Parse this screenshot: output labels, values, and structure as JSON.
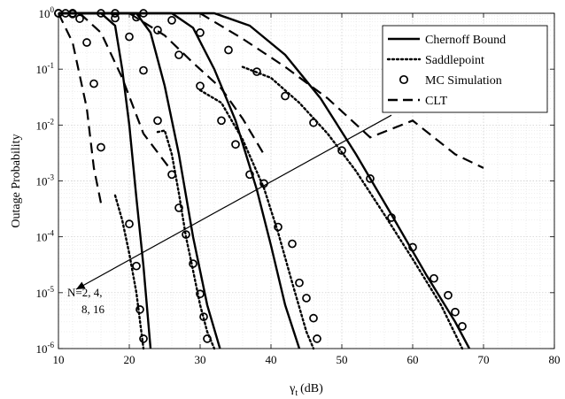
{
  "chart_data": {
    "type": "line",
    "title": "",
    "xlabel": "γ",
    "xlabel_sub": "t",
    "xlabel_unit": "(dB)",
    "ylabel": "Outage Probability",
    "xlim": [
      10,
      80
    ],
    "ylim": [
      1e-06,
      1
    ],
    "yscale": "log",
    "grid": true,
    "legend_position": "top-right",
    "x_ticks": [
      10,
      20,
      30,
      40,
      50,
      60,
      70,
      80
    ],
    "x_tick_labels": [
      "10",
      "20",
      "30",
      "40",
      "50",
      "60",
      "70",
      "80"
    ],
    "y_ticks": [
      1,
      0.1,
      0.01,
      0.001,
      0.0001,
      1e-05,
      1e-06
    ],
    "y_tick_labels": [
      {
        "base": "10",
        "exp": "0"
      },
      {
        "base": "10",
        "exp": "-1"
      },
      {
        "base": "10",
        "exp": "-2"
      },
      {
        "base": "10",
        "exp": "-3"
      },
      {
        "base": "10",
        "exp": "-4"
      },
      {
        "base": "10",
        "exp": "-5"
      },
      {
        "base": "10",
        "exp": "-6"
      }
    ],
    "legend": [
      {
        "name": "Chernoff Bound",
        "style": "solid"
      },
      {
        "name": "Saddlepoint",
        "style": "dotted"
      },
      {
        "name": "MC Simulation",
        "style": "circle"
      },
      {
        "name": "CLT",
        "style": "dashed"
      }
    ],
    "annotation": {
      "lines": [
        "N=2, 4,",
        "8, 16"
      ],
      "arrow_from": [
        57,
        0.015
      ],
      "arrow_to": [
        12.5,
        1.15e-05
      ]
    },
    "series": [
      {
        "group": "N=2",
        "chernoff": [
          [
            10,
            1
          ],
          [
            16,
            1
          ],
          [
            18,
            0.6
          ],
          [
            19,
            0.1
          ],
          [
            20,
            0.01
          ],
          [
            21,
            0.0005
          ],
          [
            22,
            3e-05
          ],
          [
            23,
            1e-06
          ]
        ],
        "saddlepoint": [
          [
            18,
            0.00055
          ],
          [
            19,
            0.0002
          ],
          [
            20,
            5e-05
          ],
          [
            21,
            1e-05
          ],
          [
            22,
            1e-06
          ]
        ],
        "mc": [
          [
            10,
            1
          ],
          [
            11,
            1
          ],
          [
            12,
            0.97
          ],
          [
            13,
            0.8
          ],
          [
            14,
            0.3
          ],
          [
            15,
            0.055
          ],
          [
            16,
            0.004
          ],
          [
            20,
            0.00017
          ],
          [
            21,
            3e-05
          ],
          [
            21.5,
            5e-06
          ],
          [
            22,
            1.5e-06
          ]
        ],
        "clt": [
          [
            10,
            1
          ],
          [
            12,
            0.3
          ],
          [
            14,
            0.02
          ],
          [
            15,
            0.0017
          ],
          [
            16,
            0.0004
          ]
        ]
      },
      {
        "group": "N=4",
        "chernoff": [
          [
            10,
            1
          ],
          [
            21,
            1
          ],
          [
            23,
            0.45
          ],
          [
            25,
            0.05
          ],
          [
            27,
            0.003
          ],
          [
            29,
            0.0001
          ],
          [
            31,
            6e-06
          ],
          [
            32.8,
            1e-06
          ]
        ],
        "saddlepoint": [
          [
            24,
            0.0075
          ],
          [
            25,
            0.008
          ],
          [
            26,
            0.003
          ],
          [
            27,
            0.0006
          ],
          [
            28,
            0.0001
          ],
          [
            29,
            2.5e-05
          ],
          [
            30,
            6e-06
          ],
          [
            31,
            2e-06
          ],
          [
            32,
            1e-06
          ]
        ],
        "mc": [
          [
            10,
            1
          ],
          [
            12,
            1
          ],
          [
            16,
            1
          ],
          [
            18,
            0.82
          ],
          [
            20,
            0.38
          ],
          [
            22,
            0.095
          ],
          [
            24,
            0.012
          ],
          [
            26,
            0.0013
          ],
          [
            27,
            0.00033
          ],
          [
            28,
            0.00011
          ],
          [
            29,
            3.3e-05
          ],
          [
            30,
            9.5e-06
          ],
          [
            30.5,
            3.7e-06
          ],
          [
            31,
            1.5e-06
          ]
        ],
        "clt": [
          [
            13,
            1
          ],
          [
            16,
            0.45
          ],
          [
            19,
            0.07
          ],
          [
            22,
            0.007
          ],
          [
            26,
            0.0015
          ]
        ]
      },
      {
        "group": "N=8",
        "chernoff": [
          [
            10,
            1
          ],
          [
            26,
            1
          ],
          [
            29,
            0.55
          ],
          [
            32,
            0.1
          ],
          [
            35,
            0.012
          ],
          [
            38,
            0.0007
          ],
          [
            40,
            7e-05
          ],
          [
            42,
            6e-06
          ],
          [
            44,
            1e-06
          ]
        ],
        "saddlepoint": [
          [
            30,
            0.042
          ],
          [
            33,
            0.025
          ],
          [
            36,
            0.0055
          ],
          [
            39,
            0.00075
          ],
          [
            41,
            0.00012
          ],
          [
            43,
            1.5e-05
          ],
          [
            45,
            2e-06
          ],
          [
            46,
            1e-06
          ]
        ],
        "mc": [
          [
            10,
            1
          ],
          [
            12,
            1
          ],
          [
            18,
            1
          ],
          [
            21,
            0.85
          ],
          [
            24,
            0.5
          ],
          [
            27,
            0.18
          ],
          [
            30,
            0.05
          ],
          [
            33,
            0.012
          ],
          [
            35,
            0.0045
          ],
          [
            37,
            0.0013
          ],
          [
            39,
            0.0009
          ],
          [
            41,
            0.00015
          ],
          [
            43,
            7.5e-05
          ],
          [
            44,
            1.5e-05
          ],
          [
            45,
            8e-06
          ],
          [
            46,
            3.5e-06
          ],
          [
            46.5,
            1.5e-06
          ]
        ],
        "clt": [
          [
            20,
            1
          ],
          [
            25,
            0.4
          ],
          [
            29,
            0.13
          ],
          [
            33,
            0.045
          ],
          [
            36,
            0.013
          ],
          [
            39,
            0.003
          ]
        ]
      },
      {
        "group": "N=16",
        "chernoff": [
          [
            10,
            1
          ],
          [
            32,
            1
          ],
          [
            37,
            0.6
          ],
          [
            42,
            0.18
          ],
          [
            47,
            0.03
          ],
          [
            52,
            0.003
          ],
          [
            57,
            0.00025
          ],
          [
            62,
            2e-05
          ],
          [
            66,
            3e-06
          ],
          [
            68,
            1e-06
          ]
        ],
        "saddlepoint": [
          [
            36,
            0.11
          ],
          [
            40,
            0.07
          ],
          [
            44,
            0.025
          ],
          [
            48,
            0.007
          ],
          [
            52,
            0.0015
          ],
          [
            56,
            0.00025
          ],
          [
            60,
            4e-05
          ],
          [
            64,
            6e-06
          ],
          [
            67,
            1e-06
          ]
        ],
        "mc": [
          [
            10,
            1
          ],
          [
            12,
            1
          ],
          [
            22,
            1
          ],
          [
            26,
            0.75
          ],
          [
            30,
            0.45
          ],
          [
            34,
            0.22
          ],
          [
            38,
            0.09
          ],
          [
            42,
            0.033
          ],
          [
            46,
            0.011
          ],
          [
            50,
            0.0035
          ],
          [
            54,
            0.0011
          ],
          [
            57,
            0.00022
          ],
          [
            60,
            6.5e-05
          ],
          [
            63,
            1.8e-05
          ],
          [
            65,
            9e-06
          ],
          [
            66,
            4.5e-06
          ],
          [
            67,
            2.5e-06
          ]
        ],
        "clt": [
          [
            30,
            1
          ],
          [
            36,
            0.35
          ],
          [
            42,
            0.11
          ],
          [
            48,
            0.03
          ],
          [
            54,
            0.006
          ],
          [
            60,
            0.012
          ],
          [
            66,
            0.003
          ],
          [
            70,
            0.0017
          ]
        ]
      }
    ]
  }
}
